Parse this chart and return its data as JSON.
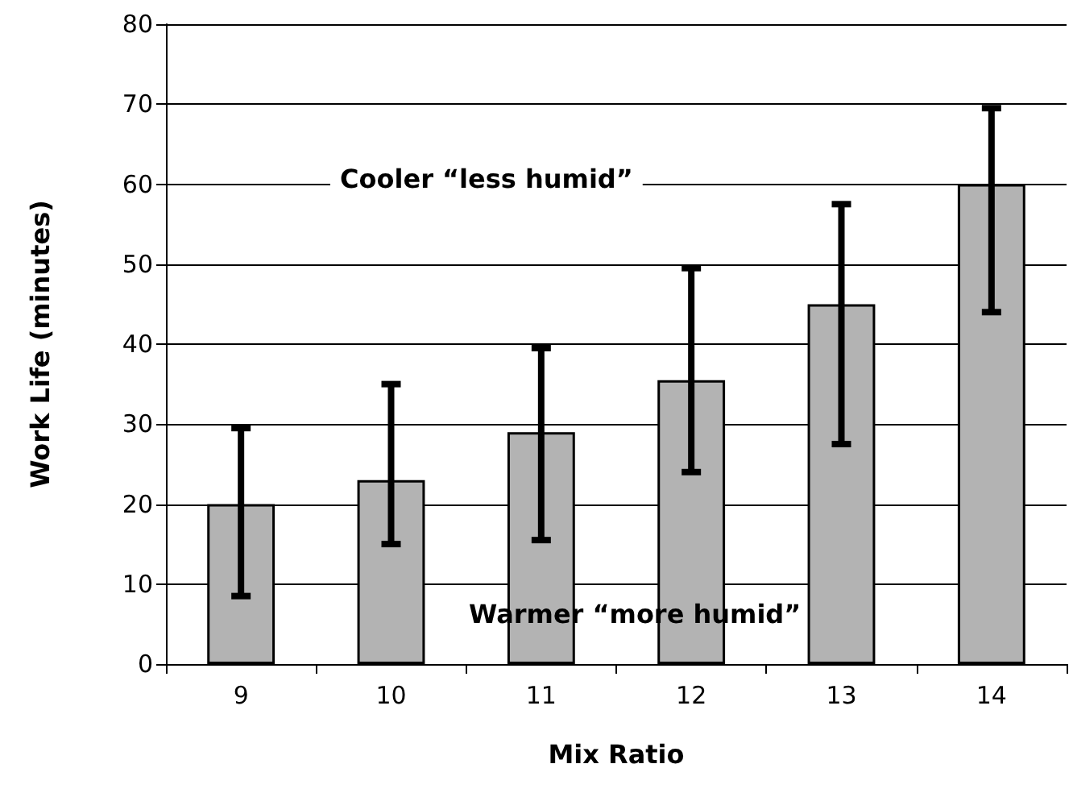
{
  "chart_data": {
    "type": "bar",
    "xlabel": "Mix Ratio",
    "ylabel": "Work Life (minutes)",
    "categories": [
      "9",
      "10",
      "11",
      "12",
      "13",
      "14"
    ],
    "values": [
      20,
      23,
      29,
      35.5,
      45,
      60
    ],
    "errors": [
      [
        8.5,
        29.5
      ],
      [
        15,
        35
      ],
      [
        15.5,
        39.5
      ],
      [
        24,
        49.5
      ],
      [
        27.5,
        57.5
      ],
      [
        44,
        69.5
      ]
    ],
    "color": "#b3b3b3",
    "ylim": [
      0,
      80
    ],
    "yticks": [
      0,
      10,
      20,
      30,
      40,
      50,
      60,
      70,
      80
    ],
    "grid": "y",
    "annotations": [
      "Cooler “less humid”",
      "Warmer “more humid”"
    ]
  }
}
